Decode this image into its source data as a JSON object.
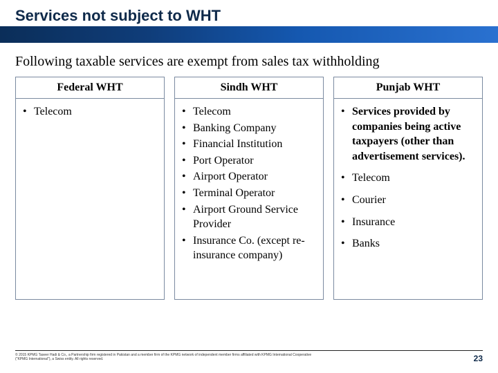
{
  "slide": {
    "title": "Services not subject to WHT",
    "subhead": "Following taxable services are exempt from sales tax withholding",
    "columns": [
      {
        "header": "Federal WHT",
        "items": [
          {
            "text": "Telecom",
            "bold": false,
            "spaced": false
          }
        ]
      },
      {
        "header": "Sindh WHT",
        "items": [
          {
            "text": "Telecom",
            "bold": false,
            "spaced": false
          },
          {
            "text": "Banking Company",
            "bold": false,
            "spaced": false
          },
          {
            "text": "Financial Institution",
            "bold": false,
            "spaced": false
          },
          {
            "text": "Port Operator",
            "bold": false,
            "spaced": false
          },
          {
            "text": "Airport Operator",
            "bold": false,
            "spaced": false
          },
          {
            "text": "Terminal Operator",
            "bold": false,
            "spaced": false
          },
          {
            "text": "Airport Ground Service Provider",
            "bold": false,
            "spaced": false
          },
          {
            "text": "Insurance Co. (except re-insurance company)",
            "bold": false,
            "spaced": false
          }
        ]
      },
      {
        "header": "Punjab WHT",
        "items": [
          {
            "text": "Services provided by companies being active taxpayers (other than advertisement services).",
            "bold": true,
            "spaced": true
          },
          {
            "text": "Telecom",
            "bold": false,
            "spaced": true
          },
          {
            "text": "Courier",
            "bold": false,
            "spaced": true
          },
          {
            "text": "Insurance",
            "bold": false,
            "spaced": true
          },
          {
            "text": "Banks",
            "bold": false,
            "spaced": false
          }
        ]
      }
    ],
    "footer_legal": "© 2015 KPMG Taseer Hadi & Co., a Partnership firm registered in Pakistan and a member firm of the KPMG network of independent member firms affiliated with KPMG International Cooperative (\"KPMG International\"), a Swiss entity. All rights reserved.",
    "page_number": "23"
  },
  "style": {
    "title_color": "#0f2a4a",
    "banner_gradient": [
      "#0b2e59",
      "#0f3d7a",
      "#1558b0",
      "#2a71d0"
    ],
    "border_color": "#7a8aa0",
    "body_font": "Times New Roman",
    "title_font": "Arial"
  }
}
